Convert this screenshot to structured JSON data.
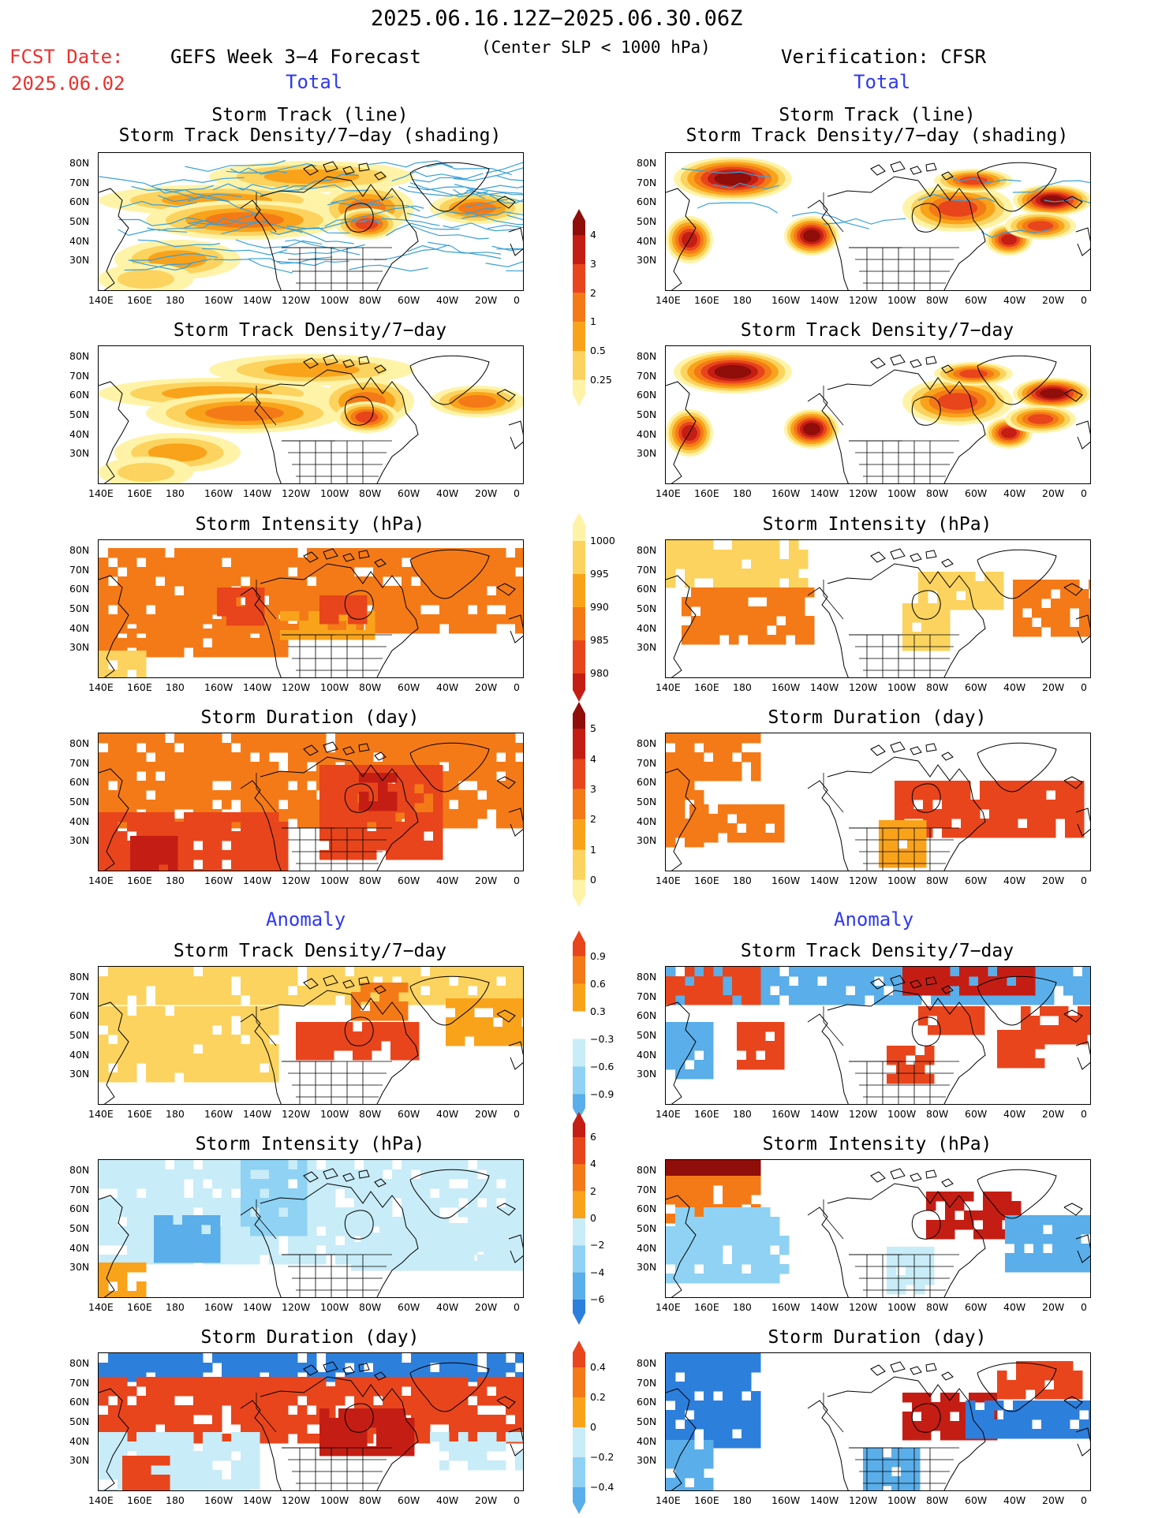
{
  "header": {
    "date_range": "2025.06.16.12Z−2025.06.30.06Z",
    "subtitle": "(Center SLP < 1000 hPa)",
    "fcst_label": "FCST Date:",
    "fcst_date": "2025.06.02",
    "left_title": "GEFS Week 3−4 Forecast",
    "right_title": "Verification: CFSR"
  },
  "sections": {
    "total_left": "Total",
    "total_right": "Total",
    "anomaly_left": "Anomaly",
    "anomaly_right": "Anomaly"
  },
  "panels": {
    "track_line": "Storm Track (line)",
    "track_shading": "Storm Track Density/7−day (shading)",
    "density": "Storm Track Density/7−day",
    "intensity": "Storm Intensity (hPa)",
    "duration": "Storm Duration (day)"
  },
  "axes": {
    "lat_ticks": [
      "80N",
      "70N",
      "60N",
      "50N",
      "40N",
      "30N"
    ],
    "lon_ticks": [
      "140E",
      "160E",
      "180",
      "160W",
      "140W",
      "120W",
      "100W",
      "80W",
      "60W",
      "40W",
      "20W",
      "0"
    ]
  },
  "colorbars": {
    "density": [
      "4",
      "3",
      "2",
      "1",
      "0.5",
      "0.25"
    ],
    "intensity": [
      "1000",
      "995",
      "990",
      "985",
      "980"
    ],
    "duration": [
      "5",
      "4",
      "3",
      "2",
      "1",
      "0"
    ],
    "anom_density": [
      "0.9",
      "0.6",
      "0.3",
      "−0.3",
      "−0.6",
      "−0.9"
    ],
    "anom_intensity": [
      "6",
      "4",
      "2",
      "0",
      "−2",
      "−4",
      "−6"
    ],
    "anom_duration": [
      "0.4",
      "0.2",
      "0",
      "−0.2",
      "−0.4"
    ]
  },
  "colors": {
    "warm": [
      "#fff3a8",
      "#fbd35e",
      "#f9a31b",
      "#f47a17",
      "#e8451c",
      "#c41e14",
      "#8f0e0a"
    ],
    "cool": [
      "#c8ecf8",
      "#8fd2f3",
      "#5aaee9",
      "#2d7fdc"
    ],
    "track": "#3aa0d8"
  }
}
